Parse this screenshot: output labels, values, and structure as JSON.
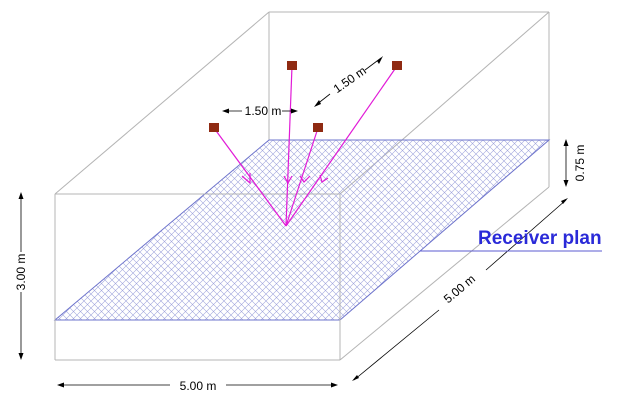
{
  "dimensions": {
    "height": "3.00 m",
    "width": "5.00 m",
    "depth": "5.00 m",
    "plane_height": "0.75 m",
    "spacing_x": "1.50 m",
    "spacing_y": "1.50 m"
  },
  "receiver": {
    "label": "Receiver  plan"
  },
  "colors": {
    "box": "#b4b4b4",
    "mesh": "#9da3dc",
    "mesh_border": "#6e74cc",
    "rays": "#e11ad7",
    "sources": "#8f2a12",
    "receiver_text": "#2a2ad8",
    "receiver_line": "#5b5bd0"
  }
}
